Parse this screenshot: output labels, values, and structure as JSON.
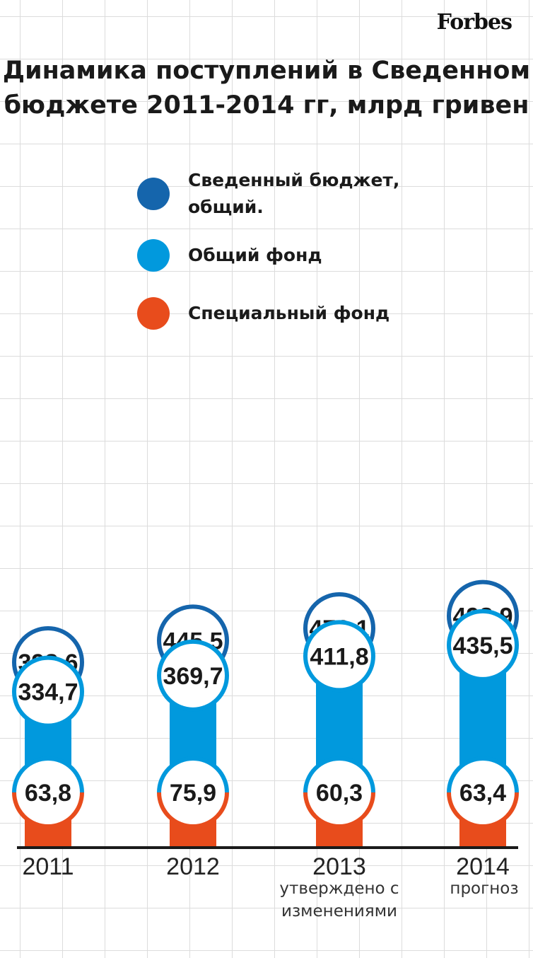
{
  "brand": "Forbes",
  "title_lines": [
    "Динамика поступлений в Сведенном",
    "бюджете 2011-2014 гг, млрд гривен"
  ],
  "colors": {
    "total": "#1565ac",
    "general": "#0199dd",
    "special": "#e84c1c",
    "axis": "#1a1a1a"
  },
  "legend": [
    {
      "lines": [
        "Сведенный бюджет,",
        "общий."
      ],
      "color": "#1565ac"
    },
    {
      "lines": [
        "Общий фонд"
      ],
      "color": "#0199dd"
    },
    {
      "lines": [
        "Специальный фонд"
      ],
      "color": "#e84c1c"
    }
  ],
  "chart_data": {
    "type": "bar",
    "categories": [
      "2011",
      "2012",
      "2013",
      "2014"
    ],
    "category_notes": [
      "",
      "",
      "утверждено с\nизменениями",
      "прогноз"
    ],
    "series": [
      {
        "name": "Сведенный бюджет, общий.",
        "values": [
          398.6,
          445.5,
          472.1,
          498.9
        ],
        "labels": [
          "398,6",
          "445,5",
          "472,1",
          "498,9"
        ]
      },
      {
        "name": "Общий фонд",
        "values": [
          334.7,
          369.7,
          411.8,
          435.5
        ],
        "labels": [
          "334,7",
          "369,7",
          "411,8",
          "435,5"
        ]
      },
      {
        "name": "Специальный фонд",
        "values": [
          63.8,
          75.9,
          60.3,
          63.4
        ],
        "labels": [
          "63,8",
          "75,9",
          "60,3",
          "63,4"
        ]
      }
    ],
    "grid": true,
    "legend_position": "top"
  }
}
